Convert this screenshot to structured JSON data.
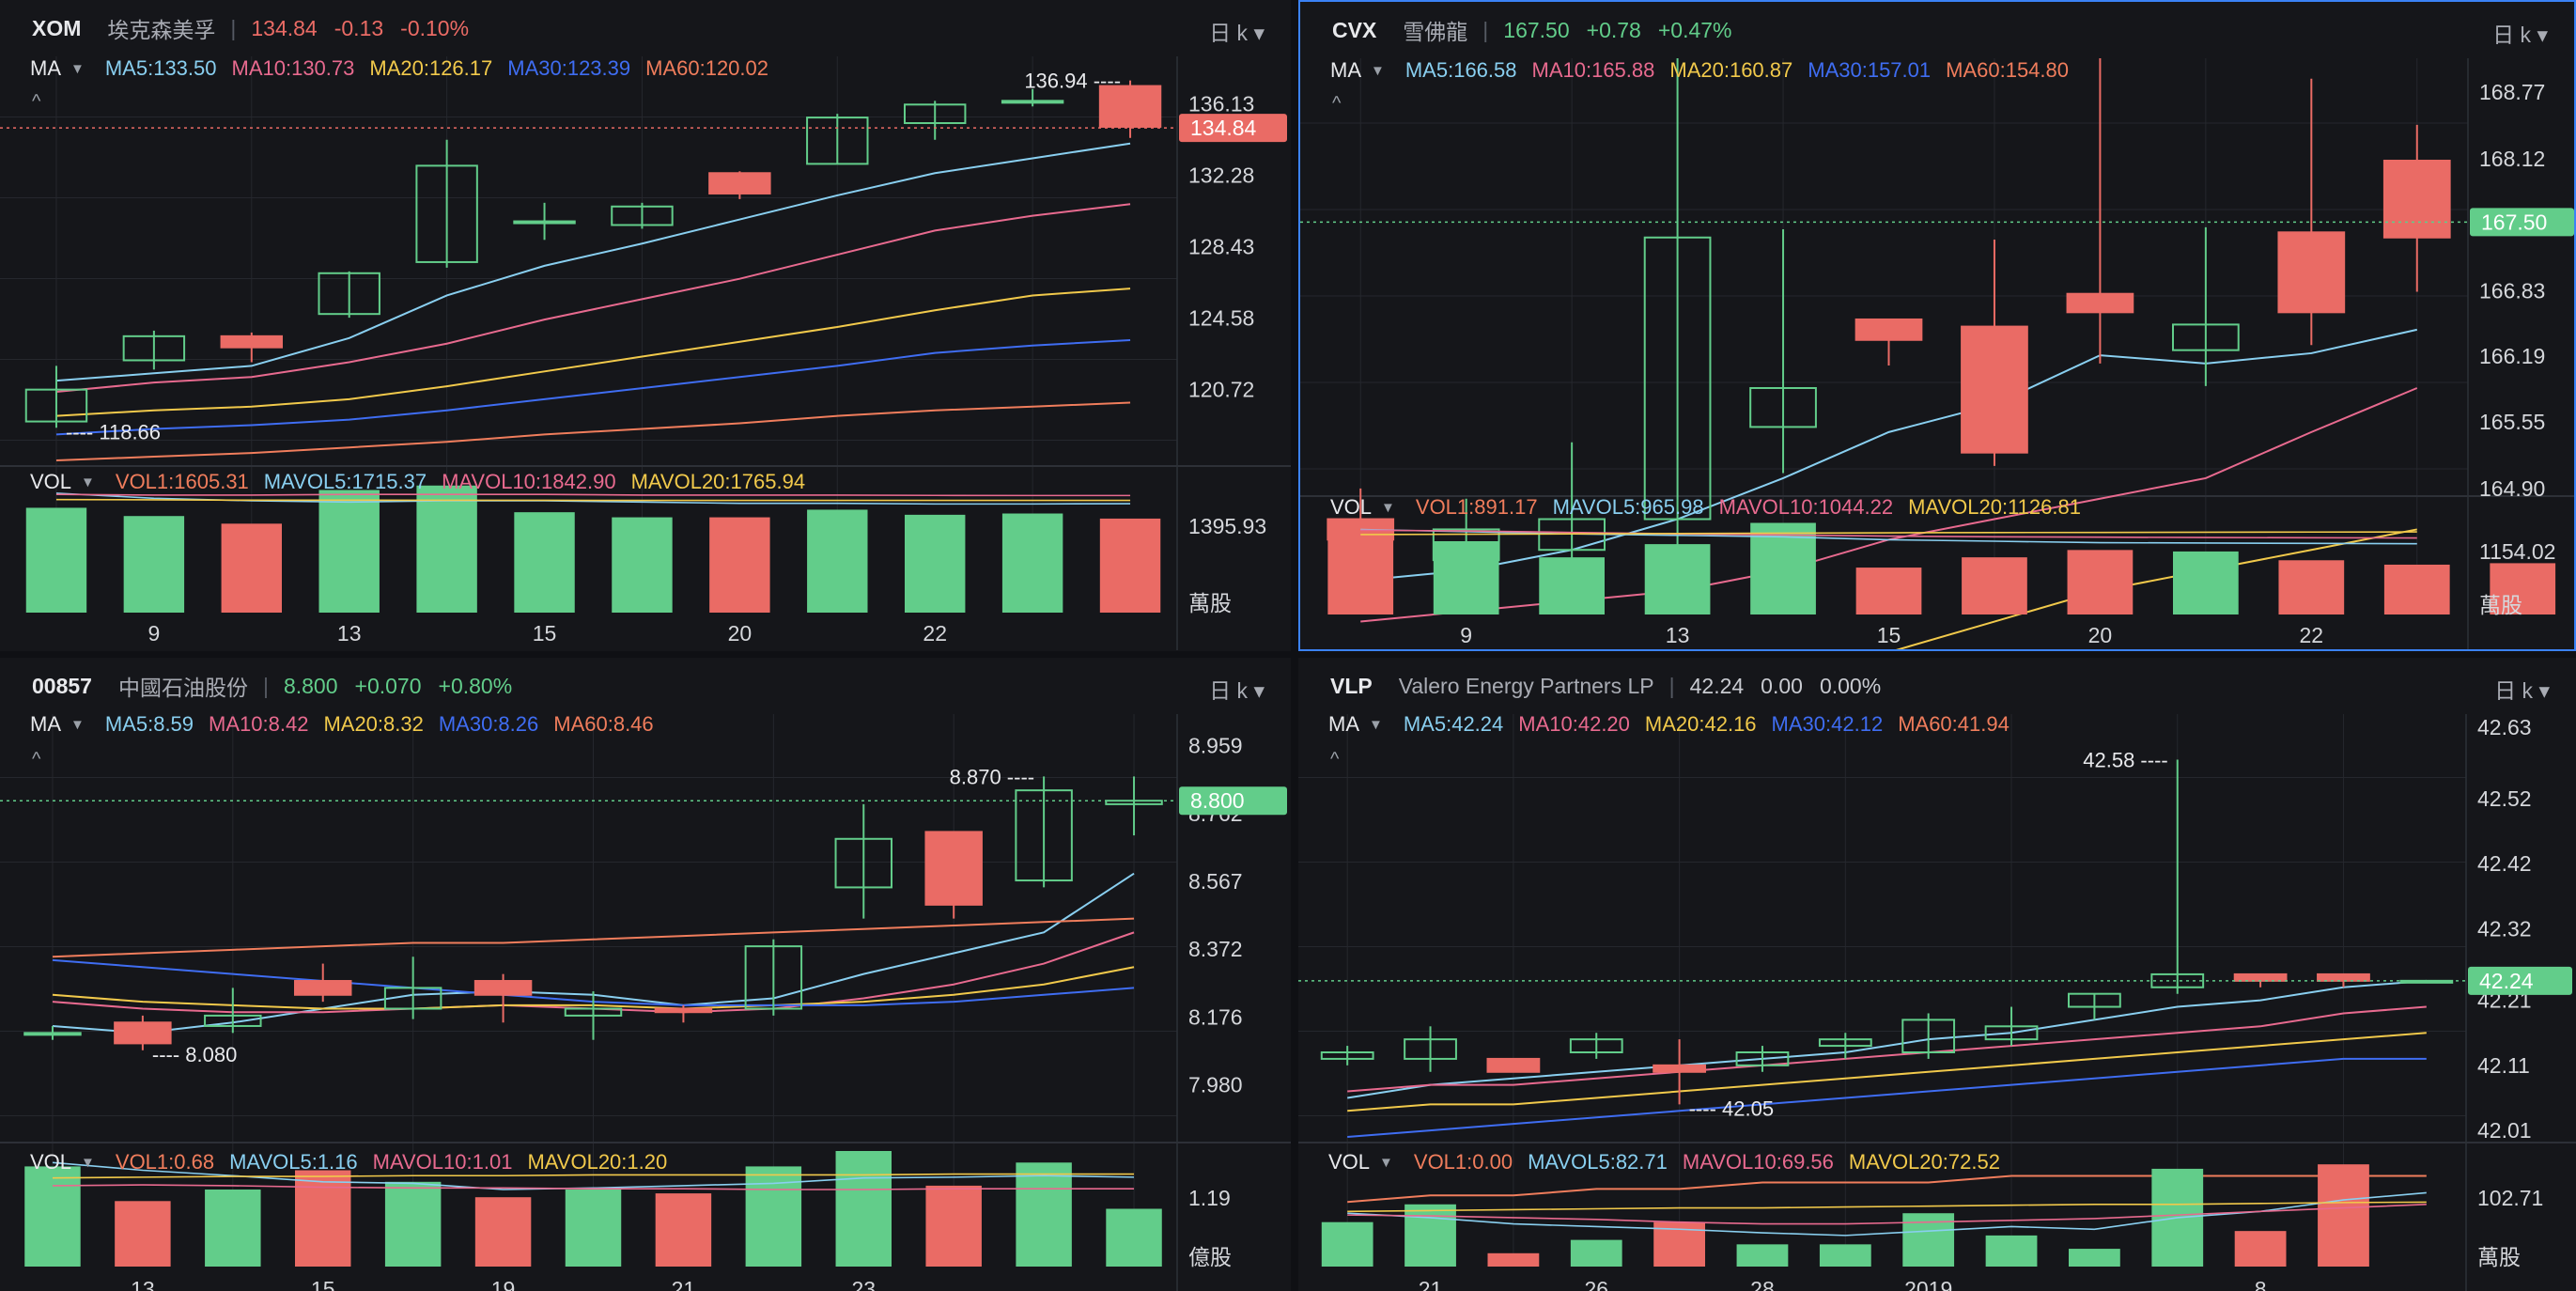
{
  "colors": {
    "up": "#62cd8a",
    "down": "#ea6b65",
    "ma5": "#89cff0",
    "ma10": "#e86a8f",
    "ma20": "#f1c94b",
    "ma30": "#3f6df2",
    "ma60": "#f07d5c",
    "axis_text": "#d5d7db",
    "grid": "#25272d"
  },
  "panels": [
    {
      "code": "XOM",
      "name": "埃克森美孚",
      "price": "134.84",
      "change": "-0.13",
      "pct": "-0.10%",
      "trend": "down",
      "timeframe": "日 k ▾",
      "ma": {
        "label": "MA",
        "ma5": "MA5:133.50",
        "ma10": "MA10:130.73",
        "ma20": "MA20:126.17",
        "ma30": "MA30:123.39",
        "ma60": "MA60:120.02"
      },
      "vol": {
        "label": "VOL",
        "v1": "VOL1:1605.31",
        "m5": "MAVOL5:1715.37",
        "m10": "MAVOL10:1842.90",
        "m20": "MAVOL20:1765.94"
      },
      "price_axis": [
        "136.13",
        "132.28",
        "128.43",
        "124.58",
        "120.72"
      ],
      "price_range": [
        116.9,
        138.7
      ],
      "last_price_tag": "134.84",
      "high_mark": "136.94 ----",
      "low_mark": "---- 118.66",
      "vol_axis": "1395.93",
      "vol_unit": "萬股",
      "vol_max": 2100,
      "x_labels": [
        {
          "i": 1,
          "t": "9"
        },
        {
          "i": 3,
          "t": "13"
        },
        {
          "i": 5,
          "t": "15"
        },
        {
          "i": 7,
          "t": "20"
        },
        {
          "i": 9,
          "t": "22"
        }
      ],
      "candles": [
        [
          119.0,
          120.72,
          118.66,
          122.0
        ],
        [
          122.3,
          123.6,
          121.8,
          123.9
        ],
        [
          123.6,
          123.0,
          122.2,
          123.8
        ],
        [
          124.8,
          127.0,
          124.6,
          127.1
        ],
        [
          127.6,
          132.8,
          127.3,
          134.2
        ],
        [
          129.8,
          129.8,
          128.8,
          130.8
        ],
        [
          129.6,
          130.6,
          129.4,
          130.8
        ],
        [
          132.4,
          131.3,
          131.0,
          132.5
        ],
        [
          132.9,
          135.4,
          132.9,
          135.6
        ],
        [
          135.1,
          136.1,
          134.2,
          136.3
        ],
        [
          136.3,
          136.3,
          136.0,
          136.94
        ],
        [
          137.1,
          134.9,
          134.3,
          137.4
        ]
      ],
      "volumes": [
        1650,
        1520,
        1400,
        1930,
        2000,
        1580,
        1500,
        1500,
        1620,
        1540,
        1560,
        1480
      ],
      "ma_series": {
        "ma5": [
          121.2,
          121.6,
          122.0,
          123.5,
          125.8,
          127.4,
          128.6,
          129.9,
          131.2,
          132.4,
          133.2,
          134.0
        ],
        "ma10": [
          120.6,
          121.1,
          121.4,
          122.2,
          123.2,
          124.5,
          125.6,
          126.7,
          128.0,
          129.3,
          130.1,
          130.73
        ],
        "ma20": [
          119.3,
          119.6,
          119.8,
          120.2,
          120.9,
          121.7,
          122.5,
          123.3,
          124.1,
          125.0,
          125.8,
          126.17
        ],
        "ma30": [
          118.3,
          118.6,
          118.8,
          119.1,
          119.6,
          120.2,
          120.8,
          121.4,
          122.0,
          122.7,
          123.1,
          123.39
        ],
        "ma60": [
          116.9,
          117.1,
          117.3,
          117.6,
          117.9,
          118.3,
          118.6,
          118.9,
          119.3,
          119.6,
          119.8,
          120.02
        ]
      },
      "vol_ma": {
        "m5": [
          1880,
          1800,
          1760,
          1740,
          1760,
          1760,
          1740,
          1720,
          1720,
          1710,
          1710,
          1715
        ],
        "m10": [
          1860,
          1850,
          1850,
          1860,
          1860,
          1860,
          1850,
          1850,
          1850,
          1845,
          1843,
          1843
        ],
        "m20": [
          1780,
          1775,
          1770,
          1770,
          1768,
          1768,
          1766,
          1766,
          1766,
          1766,
          1766,
          1766
        ]
      }
    },
    {
      "code": "CVX",
      "name": "雪佛龍",
      "price": "167.50",
      "change": "+0.78",
      "pct": "+0.47%",
      "trend": "up",
      "timeframe": "日 k ▾",
      "ma": {
        "label": "MA",
        "ma5": "MA5:166.58",
        "ma10": "MA10:165.88",
        "ma20": "MA20:160.87",
        "ma30": "MA30:157.01",
        "ma60": "MA60:154.80"
      },
      "vol": {
        "label": "VOL",
        "v1": "VOL1:891.17",
        "m5": "MAVOL5:965.98",
        "m10": "MAVOL10:1044.22",
        "m20": "MAVOL20:1126.81"
      },
      "price_axis": [
        "168.77",
        "168.12",
        "167.50",
        "166.83",
        "166.19",
        "165.55",
        "164.90"
      ],
      "price_range": [
        164.88,
        169.1
      ],
      "last_price_tag": "167.50",
      "high_mark": "",
      "low_mark": "",
      "vol_axis": "1154.02",
      "vol_unit": "萬股",
      "vol_max": 1500,
      "x_labels": [
        {
          "i": 1,
          "t": "9"
        },
        {
          "i": 3,
          "t": "13"
        },
        {
          "i": 5,
          "t": "15"
        },
        {
          "i": 7,
          "t": "20"
        },
        {
          "i": 9,
          "t": "22"
        }
      ],
      "candles": [
        [
          164.6,
          164.4,
          164.1,
          164.9
        ],
        [
          164.2,
          164.5,
          164.0,
          164.8
        ],
        [
          164.3,
          164.6,
          164.1,
          165.35
        ],
        [
          164.6,
          167.35,
          164.3,
          169.1
        ],
        [
          165.5,
          165.88,
          165.05,
          167.43
        ],
        [
          166.55,
          166.35,
          166.1,
          166.55
        ],
        [
          166.48,
          165.25,
          165.12,
          167.33
        ],
        [
          166.8,
          166.62,
          166.12,
          169.1
        ],
        [
          166.25,
          166.5,
          165.9,
          167.45
        ],
        [
          167.4,
          166.62,
          166.3,
          168.9
        ],
        [
          168.1,
          167.35,
          166.82,
          168.45
        ]
      ],
      "volumes": [
        1050,
        1000,
        780,
        960,
        1250,
        640,
        780,
        880,
        860,
        740,
        680,
        700
      ],
      "ma_series": {
        "ma5": [
          164.0,
          164.1,
          164.3,
          164.6,
          165.0,
          165.45,
          165.72,
          166.2,
          166.12,
          166.22,
          166.45
        ],
        "ma10": [
          163.6,
          163.7,
          163.8,
          163.9,
          164.1,
          164.4,
          164.6,
          164.8,
          165.0,
          165.45,
          165.88
        ],
        "ma20": [
          162.0,
          162.2,
          162.4,
          162.7,
          163.0,
          163.3,
          163.6,
          163.9,
          164.1,
          164.3,
          164.5
        ],
        "ma30": [
          160.0,
          160.2,
          160.4,
          160.7,
          161.0,
          161.3,
          161.6,
          161.9,
          162.2,
          162.5,
          162.8
        ],
        "ma60": [
          158.0,
          158.2,
          158.4,
          158.6,
          158.8,
          159.0,
          159.3,
          159.6,
          159.9,
          160.2,
          160.5
        ]
      },
      "vol_ma": {
        "m5": [
          1160,
          1130,
          1100,
          1080,
          1060,
          1020,
          1000,
          980,
          975,
          970,
          966
        ],
        "m10": [
          1150,
          1140,
          1120,
          1100,
          1085,
          1070,
          1060,
          1055,
          1050,
          1047,
          1044
        ],
        "m20": [
          1090,
          1095,
          1100,
          1105,
          1110,
          1115,
          1118,
          1120,
          1122,
          1125,
          1127
        ]
      }
    },
    {
      "code": "00857",
      "name": "中國石油股份",
      "price": "8.800",
      "change": "+0.070",
      "pct": "+0.80%",
      "trend": "up",
      "timeframe": "日 k ▾",
      "ma": {
        "label": "MA",
        "ma5": "MA5:8.59",
        "ma10": "MA10:8.42",
        "ma20": "MA20:8.32",
        "ma30": "MA30:8.26",
        "ma60": "MA60:8.46"
      },
      "vol": {
        "label": "VOL",
        "v1": "VOL1:0.68",
        "m5": "MAVOL5:1.16",
        "m10": "MAVOL10:1.01",
        "m20": "MAVOL20:1.20"
      },
      "price_axis": [
        "8.959",
        "8.762",
        "8.567",
        "8.372",
        "8.176",
        "7.980"
      ],
      "price_range": [
        7.83,
        9.05
      ],
      "last_price_tag": "8.800",
      "high_mark": "8.870 ----",
      "low_mark": "---- 8.080",
      "vol_axis": "1.19",
      "vol_unit": "億股",
      "vol_max": 1.5,
      "x_labels": [
        {
          "i": 1,
          "t": "13"
        },
        {
          "i": 3,
          "t": "15"
        },
        {
          "i": 5,
          "t": "19"
        },
        {
          "i": 7,
          "t": "21"
        },
        {
          "i": 9,
          "t": "23"
        }
      ],
      "candles": [
        [
          8.13,
          8.13,
          8.11,
          8.15
        ],
        [
          8.16,
          8.1,
          8.08,
          8.18
        ],
        [
          8.15,
          8.18,
          8.13,
          8.26
        ],
        [
          8.28,
          8.24,
          8.22,
          8.33
        ],
        [
          8.2,
          8.26,
          8.17,
          8.35
        ],
        [
          8.28,
          8.24,
          8.16,
          8.3
        ],
        [
          8.18,
          8.2,
          8.11,
          8.25
        ],
        [
          8.2,
          8.19,
          8.16,
          8.21
        ],
        [
          8.2,
          8.38,
          8.18,
          8.4
        ],
        [
          8.55,
          8.69,
          8.46,
          8.79
        ],
        [
          8.71,
          8.5,
          8.46,
          8.71
        ],
        [
          8.57,
          8.83,
          8.55,
          8.87
        ],
        [
          8.79,
          8.8,
          8.7,
          8.87
        ]
      ],
      "volumes": [
        1.3,
        0.85,
        1.0,
        1.25,
        1.1,
        0.9,
        1.0,
        0.95,
        1.3,
        1.5,
        1.05,
        1.35,
        0.75
      ],
      "ma_series": {
        "ma5": [
          8.15,
          8.13,
          8.16,
          8.2,
          8.24,
          8.25,
          8.24,
          8.21,
          8.23,
          8.3,
          8.36,
          8.42,
          8.59
        ],
        "ma10": [
          8.22,
          8.2,
          8.19,
          8.19,
          8.2,
          8.21,
          8.2,
          8.19,
          8.2,
          8.23,
          8.27,
          8.33,
          8.42
        ],
        "ma20": [
          8.24,
          8.22,
          8.21,
          8.2,
          8.2,
          8.21,
          8.21,
          8.2,
          8.21,
          8.22,
          8.24,
          8.27,
          8.32
        ],
        "ma30": [
          8.34,
          8.32,
          8.3,
          8.28,
          8.26,
          8.24,
          8.22,
          8.21,
          8.21,
          8.21,
          8.22,
          8.24,
          8.26
        ],
        "ma60": [
          8.35,
          8.36,
          8.37,
          8.38,
          8.39,
          8.39,
          8.4,
          8.41,
          8.42,
          8.43,
          8.44,
          8.45,
          8.46
        ]
      },
      "vol_ma": {
        "m5": [
          1.35,
          1.25,
          1.18,
          1.1,
          1.08,
          1.0,
          1.02,
          1.05,
          1.08,
          1.15,
          1.16,
          1.18,
          1.16
        ],
        "m10": [
          1.05,
          1.06,
          1.05,
          1.03,
          1.02,
          1.02,
          1.01,
          1.01,
          1.0,
          1.0,
          1.01,
          1.01,
          1.01
        ],
        "m20": [
          1.15,
          1.16,
          1.17,
          1.17,
          1.18,
          1.18,
          1.19,
          1.19,
          1.19,
          1.19,
          1.2,
          1.2,
          1.2
        ]
      }
    },
    {
      "code": "VLP",
      "name": "Valero Energy Partners LP",
      "price": "42.24",
      "change": "0.00",
      "pct": "0.00%",
      "trend": "flat",
      "timeframe": "日 k ▾",
      "ma": {
        "label": "MA",
        "ma5": "MA5:42.24",
        "ma10": "MA10:42.20",
        "ma20": "MA20:42.16",
        "ma30": "MA30:42.12",
        "ma60": "MA60:41.94"
      },
      "vol": {
        "label": "VOL",
        "v1": "VOL1:0.00",
        "m5": "MAVOL5:82.71",
        "m10": "MAVOL10:69.56",
        "m20": "MAVOL20:72.52"
      },
      "price_axis": [
        "42.63",
        "42.52",
        "42.42",
        "42.32",
        "42.21",
        "42.11",
        "42.01"
      ],
      "price_range": [
        42.0,
        42.65
      ],
      "last_price_tag": "42.24",
      "high_mark": "42.58 ----",
      "low_mark": "---- 42.05",
      "vol_axis": "102.71",
      "vol_unit": "萬股",
      "vol_max": 130,
      "x_labels": [
        {
          "i": 1,
          "t": "21"
        },
        {
          "i": 3,
          "t": "26"
        },
        {
          "i": 5,
          "t": "28"
        },
        {
          "i": 7,
          "t": "2019"
        },
        {
          "i": 11,
          "t": "8"
        }
      ],
      "candles": [
        [
          42.12,
          42.13,
          42.11,
          42.14
        ],
        [
          42.12,
          42.15,
          42.1,
          42.17
        ],
        [
          42.12,
          42.1,
          42.1,
          42.12
        ],
        [
          42.13,
          42.15,
          42.12,
          42.16
        ],
        [
          42.11,
          42.1,
          42.05,
          42.15
        ],
        [
          42.11,
          42.13,
          42.1,
          42.14
        ],
        [
          42.14,
          42.15,
          42.12,
          42.16
        ],
        [
          42.13,
          42.18,
          42.12,
          42.19
        ],
        [
          42.15,
          42.17,
          42.14,
          42.2
        ],
        [
          42.2,
          42.22,
          42.18,
          42.22
        ],
        [
          42.23,
          42.25,
          42.22,
          42.58
        ],
        [
          42.25,
          42.24,
          42.23,
          42.25
        ],
        [
          42.25,
          42.24,
          42.23,
          42.25
        ],
        [
          42.24,
          42.24,
          42.24,
          42.24
        ]
      ],
      "volumes": [
        50,
        70,
        15,
        30,
        50,
        25,
        25,
        60,
        35,
        20,
        110,
        40,
        115,
        0
      ],
      "ma_series": {
        "ma5": [
          42.06,
          42.08,
          42.09,
          42.1,
          42.11,
          42.12,
          42.13,
          42.15,
          42.16,
          42.18,
          42.2,
          42.21,
          42.23,
          42.24
        ],
        "ma10": [
          42.07,
          42.08,
          42.08,
          42.09,
          42.1,
          42.11,
          42.12,
          42.13,
          42.14,
          42.15,
          42.16,
          42.17,
          42.19,
          42.2
        ],
        "ma20": [
          42.04,
          42.05,
          42.05,
          42.06,
          42.07,
          42.08,
          42.09,
          42.1,
          42.11,
          42.12,
          42.13,
          42.14,
          42.15,
          42.16
        ],
        "ma30": [
          42.0,
          42.01,
          42.02,
          42.03,
          42.04,
          42.05,
          42.06,
          42.07,
          42.08,
          42.09,
          42.1,
          42.11,
          42.12,
          42.12
        ],
        "ma60": [
          41.9,
          41.91,
          41.91,
          41.92,
          41.92,
          41.93,
          41.93,
          41.93,
          41.94,
          41.94,
          41.94,
          41.94,
          41.94,
          41.94
        ]
      },
      "vol_ma": {
        "m5": [
          60,
          55,
          48,
          45,
          42,
          38,
          35,
          40,
          45,
          42,
          55,
          62,
          75,
          83
        ],
        "m10": [
          58,
          57,
          55,
          53,
          50,
          48,
          48,
          50,
          52,
          54,
          58,
          62,
          66,
          70
        ],
        "m20": [
          62,
          63,
          64,
          65,
          66,
          66,
          67,
          68,
          69,
          70,
          70,
          71,
          72,
          72.5
        ]
      }
    }
  ]
}
